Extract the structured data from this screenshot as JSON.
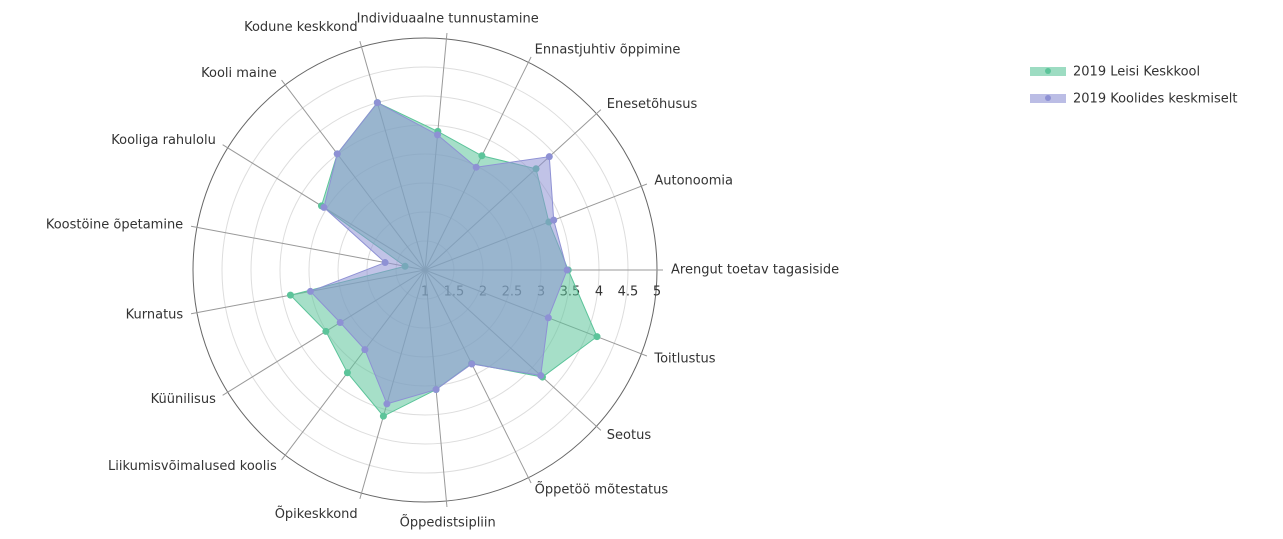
{
  "chart_data": {
    "type": "radar",
    "categories": [
      "Arengut toetav tagasiside",
      "Toitlustus",
      "Seotus",
      "Õppetöö mõtestatus",
      "Õppedistsipliin",
      "Õpikeskkond",
      "Liikumisvõimalused koolis",
      "Küünilisus",
      "Kurnatus",
      "Koostöine õpetamine",
      "Kooliga rahulolu",
      "Kooli maine",
      "Kodune keskkond",
      "Individuaalne tunnustamine",
      "Ennastjuhtiv õppimine",
      "Enesetõhusus",
      "Autonoomia"
    ],
    "series": [
      {
        "name": "2019 Leisi Keskkool",
        "color": "#5cc49a",
        "values": [
          3.47,
          4.18,
          3.74,
          2.8,
          3.07,
          3.62,
          3.22,
          3.01,
          3.36,
          1.35,
          3.1,
          3.51,
          4.0,
          3.4,
          3.2,
          3.59,
          3.29
        ]
      },
      {
        "name": "2019 Koolides keskmiselt",
        "color": "#8e91d4",
        "values": [
          3.45,
          3.28,
          3.7,
          2.81,
          3.07,
          3.4,
          2.72,
          2.72,
          3.01,
          1.7,
          3.05,
          3.51,
          4.0,
          3.34,
          2.98,
          3.9,
          3.38
        ]
      }
    ],
    "ylim": [
      1,
      5
    ],
    "yticks": [
      1,
      1.5,
      2,
      2.5,
      3,
      3.5,
      4,
      4.5,
      5
    ],
    "grid": true,
    "legend": "top-right"
  }
}
